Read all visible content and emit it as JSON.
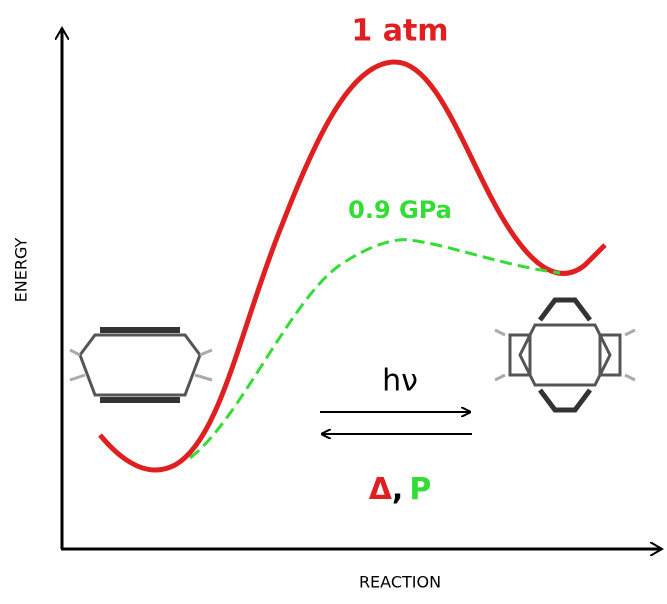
{
  "labels": {
    "high_pressure_curve": "1 atm",
    "low_pressure_curve": "0.9 GPa",
    "forward": "hν",
    "reverse_heat": "Δ",
    "reverse_sep": ",",
    "reverse_pressure": "P"
  },
  "axes": {
    "y": "ENERGY",
    "x": "REACTION"
  }
}
